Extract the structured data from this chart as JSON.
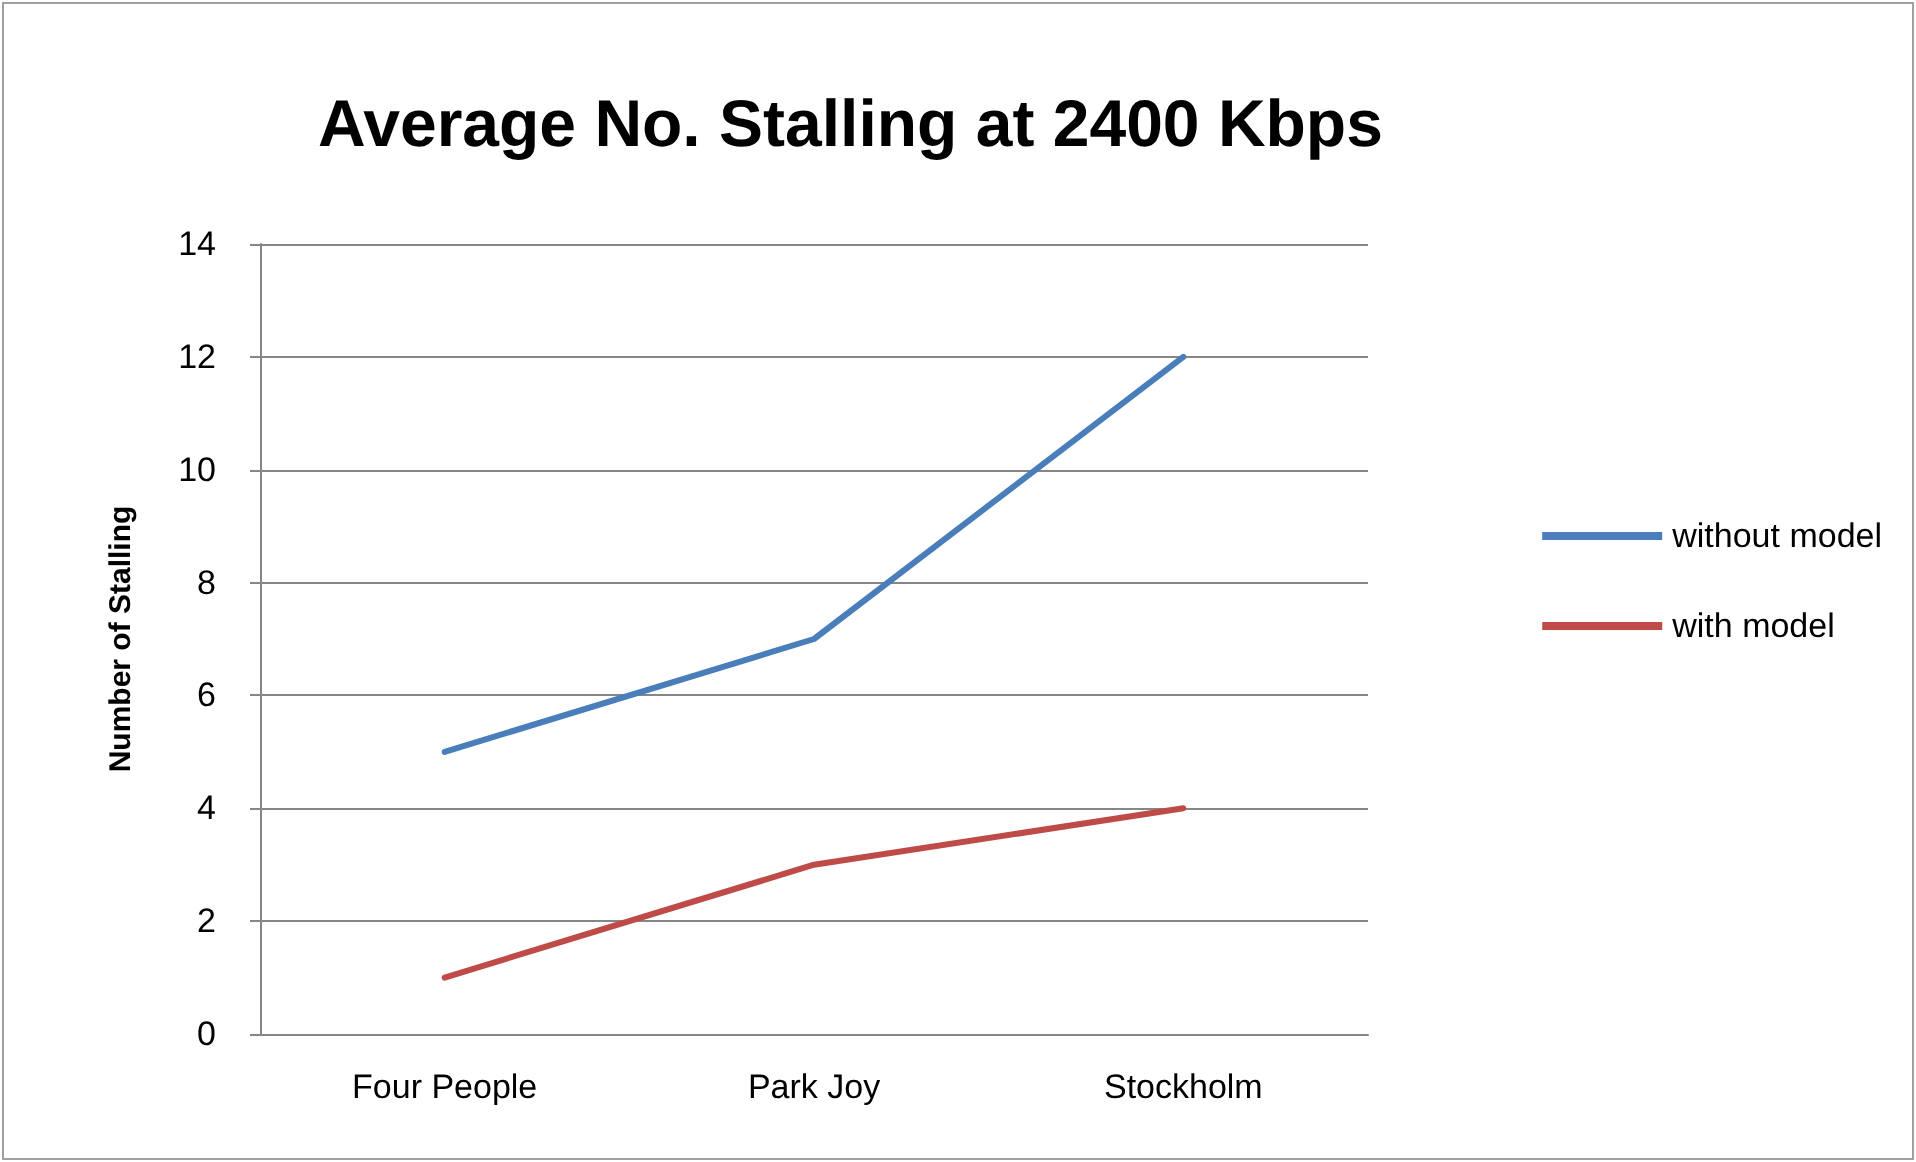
{
  "chart_data": {
    "type": "line",
    "title": "Average No. Stalling at 2400 Kbps",
    "ylabel": "Number of Stalling",
    "categories": [
      "Four People",
      "Park Joy",
      "Stockholm"
    ],
    "series": [
      {
        "name": "without model",
        "color": "#4a7ebb",
        "values": [
          5,
          7,
          12
        ]
      },
      {
        "name": "with model",
        "color": "#be4b48",
        "values": [
          1,
          3,
          4
        ]
      }
    ],
    "ylim": [
      0,
      14
    ],
    "yticks": [
      0,
      2,
      4,
      6,
      8,
      10,
      12,
      14
    ],
    "grid": "y",
    "legend": "right",
    "marker": "none"
  }
}
